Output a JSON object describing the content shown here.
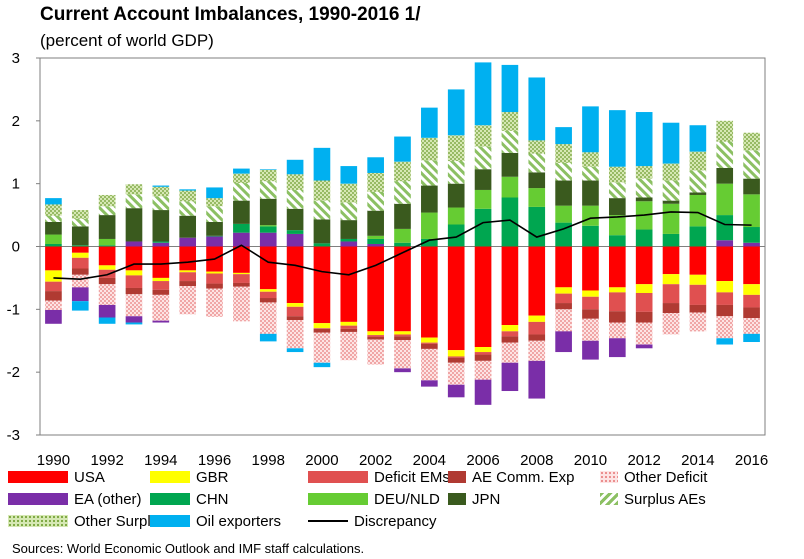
{
  "title": "Current Account Imbalances, 1990-2016 1/",
  "subtitle": "(percent of world GDP)",
  "source": "Sources: World Economic Outlook and IMF staff calculations.",
  "colors": {
    "USA": "#ff0000",
    "GBR": "#ffff00",
    "Deficit EMs": "#e05050",
    "AE Comm. Exp": "#b03a32",
    "Other Deficit": "#f4b8b8",
    "EA (other)": "#7a2ea8",
    "CHN": "#00a650",
    "DEU/NLD": "#66cc33",
    "JPN": "#3a5a1e",
    "Surplus AEs": "#a8d28a",
    "Other Surplus": "#9bbb59",
    "Oil exporters": "#00b0f0",
    "Discrepancy": "#000000"
  },
  "legend": [
    {
      "label": "USA",
      "pattern": "solid"
    },
    {
      "label": "GBR",
      "pattern": "solid"
    },
    {
      "label": "Deficit EMs",
      "pattern": "solid"
    },
    {
      "label": "AE Comm. Exp",
      "pattern": "solid"
    },
    {
      "label": "Other Deficit",
      "pattern": "dots"
    },
    {
      "label": "EA (other)",
      "pattern": "solid"
    },
    {
      "label": "CHN",
      "pattern": "solid"
    },
    {
      "label": "DEU/NLD",
      "pattern": "solid"
    },
    {
      "label": "JPN",
      "pattern": "solid"
    },
    {
      "label": "Surplus AEs",
      "pattern": "diagonal"
    },
    {
      "label": "Other Surplus",
      "pattern": "dots"
    },
    {
      "label": "Oil exporters",
      "pattern": "solid"
    },
    {
      "label": "Discrepancy",
      "pattern": "line"
    }
  ],
  "chart_data": {
    "type": "bar",
    "stacked": true,
    "x": [
      1990,
      1991,
      1992,
      1993,
      1994,
      1995,
      1996,
      1997,
      1998,
      1999,
      2000,
      2001,
      2002,
      2003,
      2004,
      2005,
      2006,
      2007,
      2008,
      2009,
      2010,
      2011,
      2012,
      2013,
      2014,
      2015,
      2016
    ],
    "xticks": [
      "1990",
      "1992",
      "1994",
      "1996",
      "1998",
      "2000",
      "2002",
      "2004",
      "2006",
      "2008",
      "2010",
      "2012",
      "2014",
      "2016"
    ],
    "yticks": [
      "-3",
      "-2",
      "-1",
      "0",
      "1",
      "2",
      "3"
    ],
    "ylim": [
      -3,
      3
    ],
    "positive_series": [
      {
        "name": "EA (other)",
        "values": [
          0,
          0,
          0,
          0.08,
          0.06,
          0.14,
          0.16,
          0.22,
          0.22,
          0.2,
          0,
          0.08,
          0.04,
          0,
          0,
          0,
          0,
          0,
          0,
          0,
          0,
          0,
          0,
          0,
          0,
          0.1,
          0.06
        ]
      },
      {
        "name": "CHN",
        "values": [
          0.04,
          0.02,
          0.02,
          0,
          0.02,
          0,
          0.01,
          0.14,
          0.1,
          0.06,
          0.05,
          0.04,
          0.08,
          0.06,
          0.12,
          0.35,
          0.6,
          0.78,
          0.63,
          0.38,
          0.33,
          0.18,
          0.27,
          0.2,
          0.32,
          0.4,
          0.25
        ]
      },
      {
        "name": "DEU/NLD",
        "values": [
          0.15,
          0,
          0.1,
          0,
          0,
          0,
          0,
          0,
          0.02,
          0,
          0,
          0,
          0.05,
          0.22,
          0.42,
          0.27,
          0.3,
          0.33,
          0.3,
          0.27,
          0.32,
          0.32,
          0.45,
          0.48,
          0.5,
          0.5,
          0.52
        ]
      },
      {
        "name": "JPN",
        "values": [
          0.2,
          0.3,
          0.38,
          0.53,
          0.5,
          0.35,
          0.22,
          0.37,
          0.42,
          0.34,
          0.38,
          0.3,
          0.4,
          0.4,
          0.43,
          0.38,
          0.33,
          0.38,
          0.25,
          0.4,
          0.4,
          0.27,
          0.06,
          0.05,
          0.04,
          0.25,
          0.25
        ]
      },
      {
        "name": "Surplus AEs",
        "values": [
          0.1,
          0.12,
          0.14,
          0.22,
          0.22,
          0.23,
          0.25,
          0.28,
          0.28,
          0.3,
          0.3,
          0.28,
          0.3,
          0.36,
          0.4,
          0.36,
          0.36,
          0.35,
          0.3,
          0.28,
          0.22,
          0.25,
          0.3,
          0.32,
          0.35,
          0.42,
          0.45
        ]
      },
      {
        "name": "Other Surplus",
        "values": [
          0.18,
          0.14,
          0.18,
          0.16,
          0.15,
          0.17,
          0.13,
          0.15,
          0.18,
          0.25,
          0.32,
          0.3,
          0.3,
          0.31,
          0.36,
          0.41,
          0.34,
          0.3,
          0.21,
          0.3,
          0.23,
          0.25,
          0.2,
          0.27,
          0.3,
          0.33,
          0.28
        ]
      },
      {
        "name": "Oil exporters",
        "values": [
          0.1,
          0,
          0,
          0,
          0.02,
          0.02,
          0.17,
          0.08,
          0.01,
          0.23,
          0.52,
          0.28,
          0.25,
          0.4,
          0.48,
          0.73,
          1.0,
          0.75,
          1.0,
          0.27,
          0.73,
          0.9,
          0.86,
          0.65,
          0.42,
          0,
          0
        ]
      }
    ],
    "negative_series": [
      {
        "name": "USA",
        "values": [
          -0.38,
          -0.1,
          -0.3,
          -0.38,
          -0.5,
          -0.38,
          -0.4,
          -0.42,
          -0.68,
          -0.9,
          -1.22,
          -1.2,
          -1.35,
          -1.35,
          -1.45,
          -1.65,
          -1.6,
          -1.25,
          -1.1,
          -0.65,
          -0.7,
          -0.65,
          -0.6,
          -0.44,
          -0.45,
          -0.55,
          -0.6
        ]
      },
      {
        "name": "GBR",
        "values": [
          -0.18,
          -0.08,
          -0.07,
          -0.08,
          -0.05,
          -0.03,
          -0.03,
          -0.02,
          -0.04,
          -0.06,
          -0.08,
          -0.06,
          -0.06,
          -0.05,
          -0.08,
          -0.1,
          -0.08,
          -0.1,
          -0.1,
          -0.1,
          -0.1,
          -0.08,
          -0.14,
          -0.16,
          -0.16,
          -0.18,
          -0.17
        ]
      },
      {
        "name": "Deficit EMs",
        "values": [
          -0.15,
          -0.17,
          -0.13,
          -0.2,
          -0.14,
          -0.14,
          -0.16,
          -0.14,
          -0.1,
          -0.15,
          -0.01,
          -0.05,
          -0.03,
          -0.03,
          -0.02,
          -0.02,
          -0.04,
          -0.08,
          -0.2,
          -0.15,
          -0.2,
          -0.3,
          -0.3,
          -0.3,
          -0.32,
          -0.2,
          -0.2
        ]
      },
      {
        "name": "AE Comm. Exp",
        "values": [
          -0.15,
          -0.1,
          -0.1,
          -0.1,
          -0.08,
          -0.08,
          -0.08,
          -0.06,
          -0.07,
          -0.06,
          -0.06,
          -0.05,
          -0.04,
          -0.06,
          -0.08,
          -0.08,
          -0.1,
          -0.1,
          -0.1,
          -0.1,
          -0.15,
          -0.18,
          -0.17,
          -0.16,
          -0.12,
          -0.18,
          -0.17
        ]
      },
      {
        "name": "Other Deficit",
        "values": [
          -0.15,
          -0.2,
          -0.33,
          -0.35,
          -0.41,
          -0.45,
          -0.45,
          -0.55,
          -0.5,
          -0.45,
          -0.48,
          -0.45,
          -0.4,
          -0.45,
          -0.5,
          -0.35,
          -0.3,
          -0.32,
          -0.32,
          -0.35,
          -0.35,
          -0.25,
          -0.35,
          -0.34,
          -0.3,
          -0.35,
          -0.25
        ]
      },
      {
        "name": "EA (other)",
        "values": [
          -0.22,
          -0.22,
          -0.2,
          -0.1,
          -0.03,
          0,
          0,
          0,
          0,
          0,
          0,
          0,
          0,
          -0.06,
          -0.1,
          -0.2,
          -0.4,
          -0.45,
          -0.6,
          -0.33,
          -0.3,
          -0.3,
          -0.06,
          0,
          0,
          0,
          0
        ]
      },
      {
        "name": "Oil exporters",
        "values": [
          0,
          -0.15,
          -0.1,
          -0.03,
          0,
          0,
          0,
          0,
          -0.12,
          -0.06,
          -0.07,
          0,
          0,
          0,
          0,
          0,
          0,
          0,
          0,
          0,
          0,
          0,
          0,
          0,
          0,
          -0.1,
          -0.13
        ]
      }
    ],
    "line": {
      "name": "Discrepancy",
      "values": [
        -0.5,
        -0.52,
        -0.45,
        -0.28,
        -0.28,
        -0.25,
        -0.2,
        0.02,
        -0.25,
        -0.3,
        -0.4,
        -0.45,
        -0.3,
        -0.1,
        0.1,
        0.15,
        0.38,
        0.42,
        0.15,
        0.28,
        0.45,
        0.47,
        0.5,
        0.55,
        0.54,
        0.35,
        0.34
      ]
    }
  }
}
